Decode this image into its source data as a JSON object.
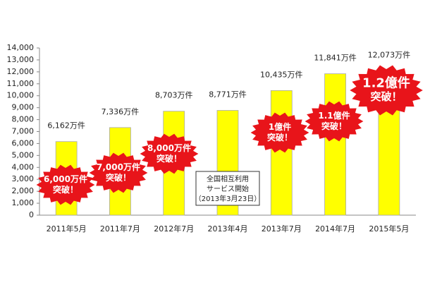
{
  "chart_data": {
    "type": "bar",
    "categories": [
      "2011年5月",
      "2011年7月",
      "2012年7月",
      "2013年4月",
      "2013年7月",
      "2014年7月",
      "2015年5月"
    ],
    "values": [
      6162,
      7336,
      8703,
      8771,
      10435,
      11841,
      12073
    ],
    "value_labels": [
      "6,162万件",
      "7,336万件",
      "8,703万件",
      "8,771万件",
      "10,435万件",
      "11,841万件",
      "12,073万件"
    ],
    "color": "#ffff00",
    "ylim": [
      0,
      14000
    ],
    "yticks": [
      0,
      {
        "value": 1000,
        "label": "1,000"
      },
      {
        "value": 2000,
        "label": "2,000"
      },
      {
        "value": 3000,
        "label": "3,000"
      },
      {
        "value": 4000,
        "label": "4,000"
      },
      {
        "value": 5000,
        "label": "5,000"
      },
      {
        "value": 6000,
        "label": "6,000"
      },
      {
        "value": 7000,
        "label": "7,000"
      },
      {
        "value": 8000,
        "label": "8,000"
      },
      {
        "value": 9000,
        "label": "9,000"
      },
      {
        "value": 10000,
        "label": "10,000"
      },
      {
        "value": 11000,
        "label": "11,000"
      },
      {
        "value": 12000,
        "label": "12,000"
      },
      {
        "value": 13000,
        "label": "13,000"
      },
      {
        "value": 14000,
        "label": "14,000"
      }
    ],
    "grid": false,
    "annotations": [
      {
        "lines": [
          "6,000万件",
          "突破！"
        ]
      },
      {
        "lines": [
          "7,000万件",
          "突破！"
        ]
      },
      {
        "lines": [
          "8,000万件",
          "突破！"
        ]
      },
      {
        "lines": [
          "1億件",
          "突破！"
        ]
      },
      {
        "lines": [
          "1.1億件",
          "突破！"
        ]
      },
      {
        "lines": [
          "1.2億件",
          "突破！"
        ]
      }
    ],
    "note": {
      "lines": [
        "全国相互利用",
        "サービス開始",
        "（2013年3月23日）"
      ]
    }
  }
}
